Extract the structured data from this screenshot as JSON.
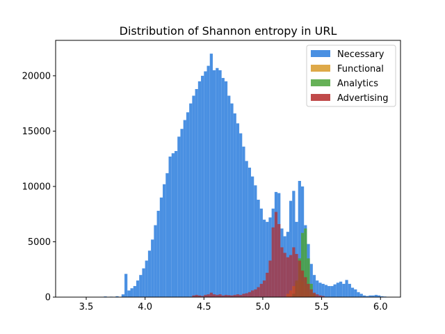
{
  "chart_data": {
    "type": "bar",
    "title": "Distribution of Shannon entropy in URL",
    "xlabel": "",
    "ylabel": "",
    "xlim": [
      3.24,
      6.17
    ],
    "ylim": [
      0,
      23200
    ],
    "xticks": [
      3.5,
      4.0,
      4.5,
      5.0,
      5.5,
      6.0
    ],
    "xtick_labels": [
      "3.5",
      "4.0",
      "4.5",
      "5.0",
      "5.5",
      "6.0"
    ],
    "yticks": [
      0,
      5000,
      10000,
      15000,
      20000
    ],
    "ytick_labels": [
      "0",
      "5000",
      "10000",
      "15000",
      "20000"
    ],
    "grid": false,
    "legend_position": "top-right",
    "bin_width": 0.025,
    "series": [
      {
        "name": "Necessary",
        "color": "#4a90e2",
        "opacity": 1.0,
        "points": [
          [
            3.65,
            60
          ],
          [
            3.7,
            40
          ],
          [
            3.75,
            80
          ],
          [
            3.8,
            250
          ],
          [
            3.825,
            2100
          ],
          [
            3.85,
            600
          ],
          [
            3.875,
            800
          ],
          [
            3.9,
            1000
          ],
          [
            3.925,
            1500
          ],
          [
            3.95,
            2000
          ],
          [
            3.975,
            2600
          ],
          [
            4.0,
            3300
          ],
          [
            4.025,
            4200
          ],
          [
            4.05,
            5200
          ],
          [
            4.075,
            6500
          ],
          [
            4.1,
            7800
          ],
          [
            4.125,
            9000
          ],
          [
            4.15,
            10200
          ],
          [
            4.175,
            11200
          ],
          [
            4.2,
            12700
          ],
          [
            4.225,
            13000
          ],
          [
            4.25,
            13200
          ],
          [
            4.275,
            14500
          ],
          [
            4.3,
            15200
          ],
          [
            4.325,
            16000
          ],
          [
            4.35,
            16700
          ],
          [
            4.375,
            17500
          ],
          [
            4.4,
            18200
          ],
          [
            4.425,
            18800
          ],
          [
            4.45,
            19500
          ],
          [
            4.475,
            20000
          ],
          [
            4.5,
            20400
          ],
          [
            4.525,
            20900
          ],
          [
            4.55,
            22000
          ],
          [
            4.575,
            20500
          ],
          [
            4.6,
            20700
          ],
          [
            4.625,
            20500
          ],
          [
            4.65,
            19800
          ],
          [
            4.675,
            19500
          ],
          [
            4.7,
            18200
          ],
          [
            4.725,
            17500
          ],
          [
            4.75,
            16600
          ],
          [
            4.775,
            15700
          ],
          [
            4.8,
            14800
          ],
          [
            4.825,
            13600
          ],
          [
            4.85,
            12300
          ],
          [
            4.875,
            11700
          ],
          [
            4.9,
            10900
          ],
          [
            4.925,
            10100
          ],
          [
            4.95,
            8800
          ],
          [
            4.975,
            8000
          ],
          [
            5.0,
            7000
          ],
          [
            5.025,
            6800
          ],
          [
            5.05,
            7200
          ],
          [
            5.075,
            8000
          ],
          [
            5.1,
            9500
          ],
          [
            5.125,
            9400
          ],
          [
            5.15,
            6200
          ],
          [
            5.175,
            5500
          ],
          [
            5.2,
            5900
          ],
          [
            5.225,
            8700
          ],
          [
            5.25,
            9600
          ],
          [
            5.275,
            6800
          ],
          [
            5.3,
            10500
          ],
          [
            5.325,
            10000
          ],
          [
            5.35,
            6500
          ],
          [
            5.375,
            4800
          ],
          [
            5.4,
            3000
          ],
          [
            5.425,
            2000
          ],
          [
            5.45,
            1500
          ],
          [
            5.475,
            1300
          ],
          [
            5.5,
            1200
          ],
          [
            5.525,
            1100
          ],
          [
            5.55,
            1000
          ],
          [
            5.575,
            1000
          ],
          [
            5.6,
            1150
          ],
          [
            5.625,
            1300
          ],
          [
            5.65,
            1400
          ],
          [
            5.675,
            1200
          ],
          [
            5.7,
            1550
          ],
          [
            5.725,
            1200
          ],
          [
            5.75,
            850
          ],
          [
            5.775,
            700
          ],
          [
            5.8,
            450
          ],
          [
            5.825,
            300
          ],
          [
            5.85,
            150
          ],
          [
            5.875,
            100
          ],
          [
            5.9,
            150
          ],
          [
            5.925,
            150
          ],
          [
            5.95,
            200
          ],
          [
            5.975,
            150
          ],
          [
            6.0,
            80
          ],
          [
            6.025,
            50
          ]
        ]
      },
      {
        "name": "Functional",
        "color": "#daa035",
        "opacity": 0.9,
        "points": [
          [
            5.2,
            300
          ],
          [
            5.225,
            600
          ],
          [
            5.25,
            1000
          ],
          [
            5.275,
            1300
          ],
          [
            5.3,
            1600
          ],
          [
            5.325,
            1400
          ],
          [
            5.35,
            1000
          ],
          [
            5.375,
            500
          ],
          [
            5.4,
            200
          ]
        ]
      },
      {
        "name": "Analytics",
        "color": "#4ba33a",
        "opacity": 0.85,
        "points": [
          [
            5.25,
            300
          ],
          [
            5.275,
            1500
          ],
          [
            5.3,
            3500
          ],
          [
            5.325,
            5800
          ],
          [
            5.35,
            6200
          ],
          [
            5.375,
            3500
          ],
          [
            5.4,
            1200
          ],
          [
            5.425,
            300
          ]
        ]
      },
      {
        "name": "Advertising",
        "color": "#b52a2a",
        "opacity": 0.72,
        "points": [
          [
            4.4,
            150
          ],
          [
            4.425,
            200
          ],
          [
            4.45,
            150
          ],
          [
            4.475,
            100
          ],
          [
            4.5,
            200
          ],
          [
            4.525,
            250
          ],
          [
            4.55,
            400
          ],
          [
            4.575,
            250
          ],
          [
            4.6,
            200
          ],
          [
            4.625,
            250
          ],
          [
            4.65,
            150
          ],
          [
            4.675,
            200
          ],
          [
            4.7,
            180
          ],
          [
            4.725,
            150
          ],
          [
            4.75,
            200
          ],
          [
            4.775,
            250
          ],
          [
            4.8,
            200
          ],
          [
            4.825,
            300
          ],
          [
            4.85,
            350
          ],
          [
            4.875,
            450
          ],
          [
            4.9,
            600
          ],
          [
            4.925,
            700
          ],
          [
            4.95,
            900
          ],
          [
            4.975,
            1200
          ],
          [
            5.0,
            1500
          ],
          [
            5.025,
            2200
          ],
          [
            5.05,
            3300
          ],
          [
            5.075,
            6300
          ],
          [
            5.1,
            7700
          ],
          [
            5.125,
            6600
          ],
          [
            5.15,
            4500
          ],
          [
            5.175,
            4000
          ],
          [
            5.2,
            3600
          ],
          [
            5.225,
            3800
          ],
          [
            5.25,
            4500
          ],
          [
            5.275,
            3900
          ],
          [
            5.3,
            3300
          ],
          [
            5.325,
            2400
          ],
          [
            5.35,
            1800
          ],
          [
            5.375,
            1200
          ],
          [
            5.4,
            700
          ],
          [
            5.425,
            400
          ],
          [
            5.45,
            250
          ],
          [
            5.475,
            150
          ],
          [
            5.5,
            100
          ]
        ]
      }
    ]
  }
}
